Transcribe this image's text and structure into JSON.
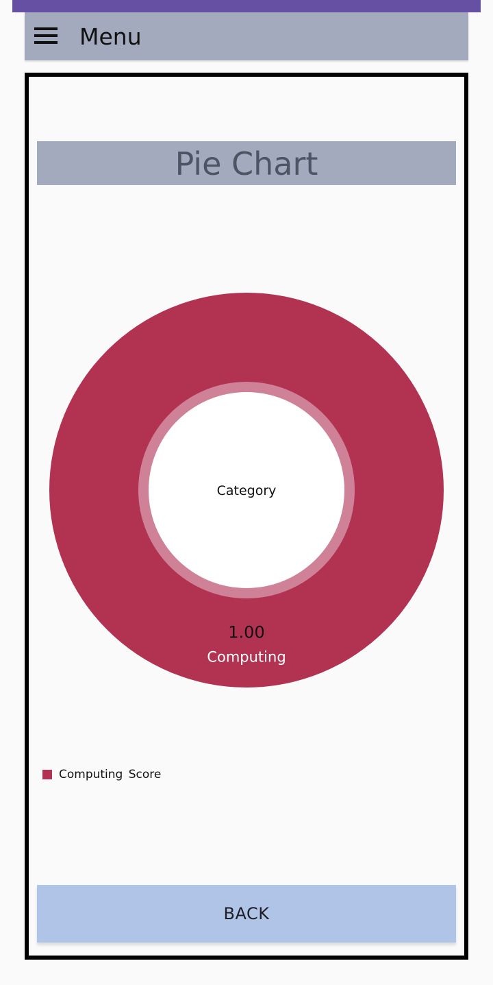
{
  "app_bar": {
    "menu_icon": "hamburger-menu-icon",
    "title": "Menu"
  },
  "colors": {
    "status_bar": "#6650a4",
    "app_bar": "#a3aabd",
    "slice": "#b23351",
    "inner_ring": "#cf8198",
    "button": "#b0c4e7"
  },
  "chart_title": "Pie Chart",
  "chart_data": {
    "type": "pie",
    "style": "donut",
    "center_label": "Category",
    "slices": [
      {
        "category": "Computing",
        "value": 1.0,
        "value_label": "1.00",
        "color": "#b23351"
      }
    ],
    "legend": [
      {
        "label": "Computing  Score",
        "color": "#b23351"
      }
    ],
    "legend_placement": "bottom-left"
  },
  "buttons": {
    "back": "BACK"
  }
}
